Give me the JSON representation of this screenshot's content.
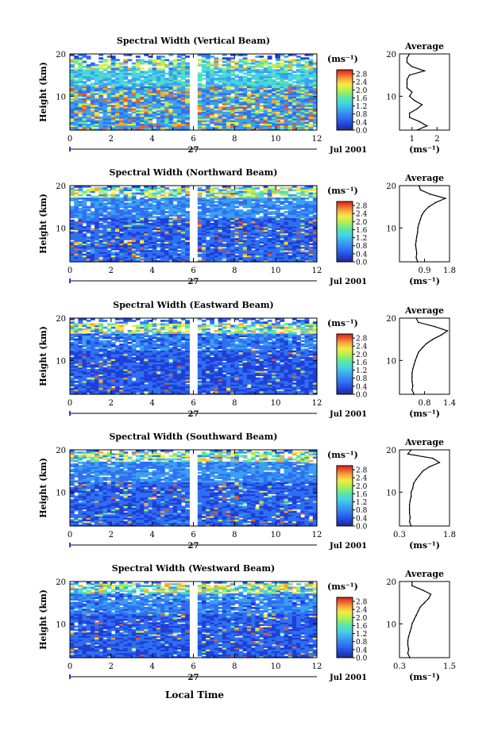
{
  "figure": {
    "xlabel": "Local Time",
    "date_label": "Jul 2001",
    "day_label": "27",
    "x_ticks": [
      "0",
      "2",
      "4",
      "6",
      "8",
      "10",
      "12"
    ],
    "ylabel": "Height (km)",
    "y_ticks": [
      "20",
      "10"
    ],
    "colorbar_unit": "(ms⁻¹)",
    "colorbar_ticks": [
      "2.8",
      "2.4",
      "2.0",
      "1.6",
      "1.2",
      "0.8",
      "0.4",
      "0.0"
    ],
    "avg_title": "Average",
    "avg_unit": "(ms⁻¹)"
  },
  "colors": {
    "scale": [
      "#2b2b7a",
      "#1f3fd6",
      "#2f6ff2",
      "#3aa0f0",
      "#44d4e6",
      "#5ee8a0",
      "#b8f04a",
      "#f5e84a",
      "#f5a83a",
      "#ee5a2a",
      "#d81e1e"
    ],
    "background": "#ffffff"
  },
  "chart_data": [
    {
      "type": "heatmap",
      "title": "Spectral Width (Vertical Beam)",
      "x_range": [
        0,
        12
      ],
      "y_range": [
        2,
        20
      ],
      "data_gap_hours": [
        6.0,
        6.2
      ],
      "colorbar_range": [
        0.0,
        3.0
      ],
      "average_profile": {
        "xlim": [
          0.5,
          2.5
        ],
        "x_ticks": [
          "1",
          "2"
        ],
        "height_km": [
          2,
          3,
          4,
          5,
          6,
          7,
          8,
          9,
          10,
          11,
          12,
          13,
          14,
          15,
          16,
          17,
          18,
          19,
          20
        ],
        "width_ms": [
          1.2,
          1.6,
          1.3,
          0.9,
          0.9,
          1.2,
          1.4,
          1.1,
          0.9,
          1.0,
          0.8,
          0.8,
          0.8,
          0.9,
          1.5,
          1.0,
          0.8,
          0.8,
          0.9
        ]
      }
    },
    {
      "type": "heatmap",
      "title": "Spectral Width (Northward Beam)",
      "x_range": [
        0,
        12
      ],
      "y_range": [
        2,
        20
      ],
      "data_gap_hours": [
        6.0,
        6.2
      ],
      "colorbar_range": [
        0.0,
        3.0
      ],
      "average_profile": {
        "xlim": [
          0.0,
          1.8
        ],
        "x_ticks": [
          "0.9",
          "1.8"
        ],
        "height_km": [
          2,
          3,
          4,
          5,
          6,
          7,
          8,
          9,
          10,
          11,
          12,
          13,
          14,
          15,
          16,
          17,
          18,
          19,
          20
        ],
        "width_ms": [
          0.65,
          0.6,
          0.62,
          0.6,
          0.58,
          0.6,
          0.62,
          0.65,
          0.66,
          0.7,
          0.75,
          0.8,
          0.9,
          1.05,
          1.3,
          1.65,
          1.1,
          0.75,
          0.7
        ]
      }
    },
    {
      "type": "heatmap",
      "title": "Spectral Width (Eastward Beam)",
      "x_range": [
        0,
        12
      ],
      "y_range": [
        2,
        20
      ],
      "data_gap_hours": [
        6.0,
        6.2
      ],
      "colorbar_range": [
        0.0,
        3.0
      ],
      "average_profile": {
        "xlim": [
          0.2,
          1.4
        ],
        "x_ticks": [
          "0.8",
          "1.4"
        ],
        "height_km": [
          2,
          3,
          4,
          5,
          6,
          7,
          8,
          9,
          10,
          11,
          12,
          13,
          14,
          15,
          16,
          17,
          18,
          19,
          20
        ],
        "width_ms": [
          0.55,
          0.5,
          0.52,
          0.5,
          0.5,
          0.5,
          0.52,
          0.55,
          0.58,
          0.62,
          0.66,
          0.75,
          0.85,
          1.0,
          1.2,
          1.35,
          1.05,
          0.65,
          0.6
        ]
      }
    },
    {
      "type": "heatmap",
      "title": "Spectral Width (Southward Beam)",
      "x_range": [
        0,
        12
      ],
      "y_range": [
        2,
        20
      ],
      "data_gap_hours": [
        6.0,
        6.2
      ],
      "colorbar_range": [
        0.0,
        3.0
      ],
      "average_profile": {
        "xlim": [
          0.3,
          1.8
        ],
        "x_ticks": [
          "0.3",
          "1.8"
        ],
        "height_km": [
          2,
          3,
          4,
          5,
          6,
          7,
          8,
          9,
          10,
          11,
          12,
          13,
          14,
          15,
          16,
          17,
          18,
          19,
          20
        ],
        "width_ms": [
          0.65,
          0.6,
          0.62,
          0.6,
          0.6,
          0.6,
          0.62,
          0.65,
          0.65,
          0.7,
          0.72,
          0.8,
          0.9,
          1.0,
          1.2,
          1.5,
          1.3,
          0.55,
          0.65
        ]
      }
    },
    {
      "type": "heatmap",
      "title": "Spectral Width (Westward Beam)",
      "x_range": [
        0,
        12
      ],
      "y_range": [
        2,
        20
      ],
      "data_gap_hours": [
        6.0,
        6.2
      ],
      "colorbar_range": [
        0.0,
        3.0
      ],
      "average_profile": {
        "xlim": [
          0.3,
          1.5
        ],
        "x_ticks": [
          "0.3",
          "1.5"
        ],
        "height_km": [
          2,
          3,
          4,
          5,
          6,
          7,
          8,
          9,
          10,
          11,
          12,
          13,
          14,
          15,
          16,
          17,
          18,
          19,
          20
        ],
        "width_ms": [
          0.55,
          0.5,
          0.52,
          0.5,
          0.5,
          0.52,
          0.55,
          0.58,
          0.6,
          0.65,
          0.7,
          0.75,
          0.8,
          0.9,
          1.0,
          1.05,
          0.85,
          0.6,
          0.6
        ]
      }
    }
  ]
}
